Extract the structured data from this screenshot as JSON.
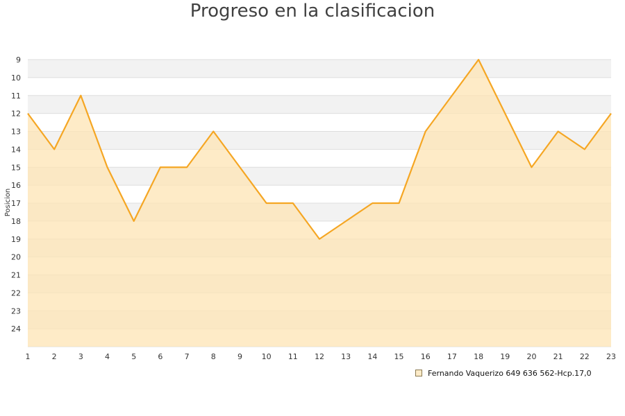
{
  "chart_data": {
    "type": "area",
    "title": "Progreso en la clasificacion",
    "xlabel": "",
    "ylabel": "Posicion",
    "x": [
      1,
      2,
      3,
      4,
      5,
      6,
      7,
      8,
      9,
      10,
      11,
      12,
      13,
      14,
      15,
      16,
      17,
      18,
      19,
      20,
      21,
      22,
      23
    ],
    "y_ticks": [
      9,
      10,
      11,
      12,
      13,
      14,
      15,
      16,
      17,
      18,
      19,
      20,
      21,
      22,
      23,
      24
    ],
    "ylim": [
      9,
      25
    ],
    "y_inverted": true,
    "grid": "alternating-bands",
    "legend_position": "bottom-right",
    "series": [
      {
        "name": "Fernando Vaquerizo  649 636 562-Hcp.17,0",
        "values": [
          12,
          14,
          11,
          15,
          18,
          15,
          15,
          13,
          15,
          17,
          17,
          19,
          18,
          17,
          17,
          13,
          11,
          9,
          12,
          15,
          13,
          14,
          12
        ],
        "color": "#f5a623",
        "fill": "#fde4b4"
      }
    ]
  }
}
